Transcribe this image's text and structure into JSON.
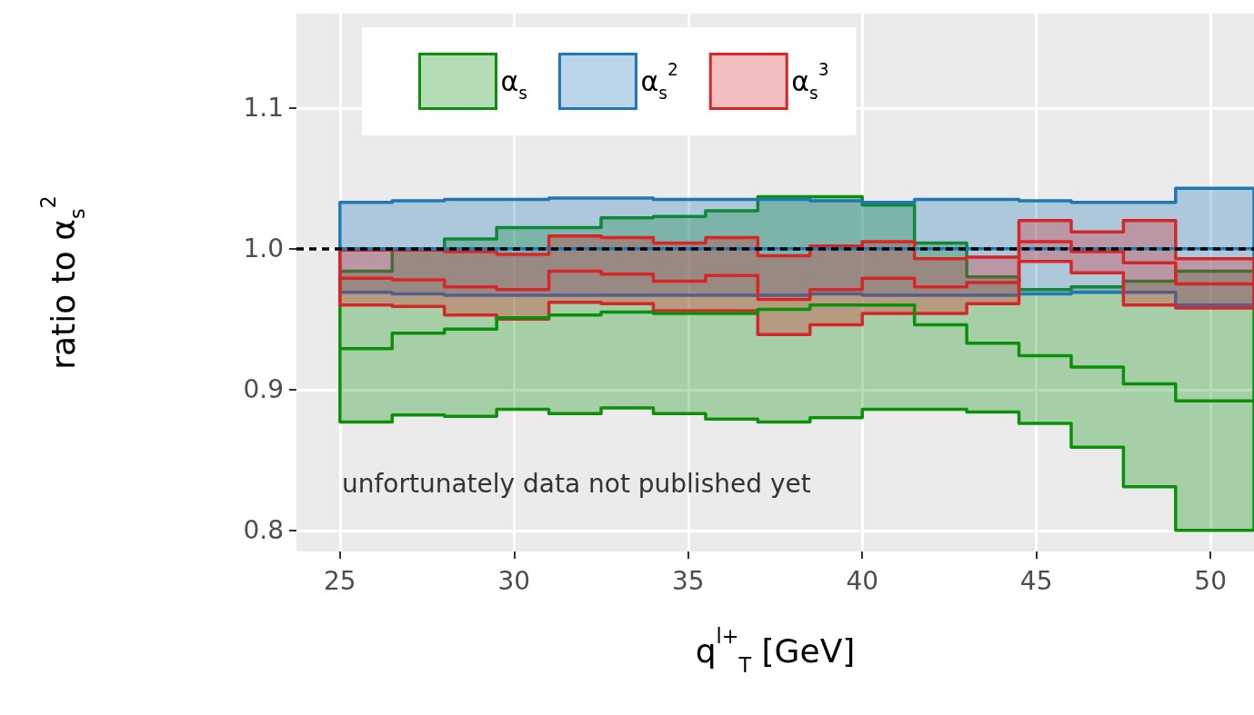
{
  "chart_data": {
    "type": "step",
    "xlabel": "q$^{l+}$$_{T}$ [GeV]",
    "ylabel": "ratio to α$_{s}$$^{2}$",
    "x": [
      25,
      26.5,
      28,
      29.5,
      31,
      32.5,
      34,
      35.5,
      37,
      38.5,
      40,
      41.5,
      43,
      44.5,
      46,
      47.5,
      49,
      51.25
    ],
    "xlim": [
      23.75,
      51.25
    ],
    "xticks": [
      25,
      30,
      35,
      40,
      45,
      50
    ],
    "ylim": [
      0.785,
      1.167
    ],
    "yticks": [
      0.8,
      0.9,
      {
        "value": 1,
        "label": "1.0"
      },
      1.1
    ],
    "grid": true,
    "legend": "top left",
    "marker": "none",
    "line_style": "solid",
    "series": [
      {
        "name": "α$_{s}$",
        "color": "#0a900a",
        "values": [
          0.929,
          0.94,
          0.943,
          0.951,
          0.953,
          0.955,
          0.954,
          0.954,
          0.957,
          0.96,
          0.96,
          0.946,
          0.933,
          0.924,
          0.916,
          0.904,
          0.892,
          0.892
        ],
        "lower": [
          0.877,
          0.882,
          0.881,
          0.886,
          0.883,
          0.887,
          0.883,
          0.879,
          0.877,
          0.88,
          0.886,
          0.886,
          0.884,
          0.876,
          0.859,
          0.831,
          0.8,
          0.8
        ],
        "upper": [
          0.984,
          0.999,
          1.007,
          1.015,
          1.015,
          1.022,
          1.023,
          1.027,
          1.037,
          1.037,
          1.031,
          1.004,
          0.98,
          0.971,
          0.973,
          0.977,
          0.984,
          0.984
        ]
      },
      {
        "name": "α$_{s}$$^{2}$",
        "color": "#1f77b4",
        "values": [
          1,
          1,
          1,
          1,
          1,
          1,
          1,
          1,
          1,
          1,
          1,
          1,
          1,
          1,
          1,
          1,
          1,
          1
        ],
        "lower": [
          0.969,
          0.968,
          0.967,
          0.967,
          0.967,
          0.967,
          0.967,
          0.967,
          0.967,
          0.968,
          0.967,
          0.967,
          0.967,
          0.968,
          0.969,
          0.969,
          0.96,
          0.96
        ],
        "upper": [
          1.033,
          1.034,
          1.035,
          1.035,
          1.036,
          1.036,
          1.035,
          1.035,
          1.035,
          1.034,
          1.033,
          1.035,
          1.035,
          1.034,
          1.033,
          1.033,
          1.043,
          1.043
        ]
      },
      {
        "name": "α$_{s}$$^{3}$",
        "color": "#d62728",
        "values": [
          0.979,
          0.978,
          0.973,
          0.971,
          0.984,
          0.982,
          0.977,
          0.981,
          0.964,
          0.971,
          0.979,
          0.973,
          0.976,
          1.005,
          0.998,
          0.99,
          0.975,
          0.975
        ],
        "lower": [
          0.96,
          0.959,
          0.953,
          0.95,
          0.962,
          0.961,
          0.956,
          0.956,
          0.939,
          0.946,
          0.954,
          0.954,
          0.961,
          0.991,
          0.983,
          0.96,
          0.958,
          0.958
        ],
        "upper": [
          0.999,
          0.999,
          0.998,
          0.996,
          1.009,
          1.008,
          1.004,
          1.008,
          0.995,
          1.002,
          1.005,
          0.993,
          0.994,
          1.02,
          1.012,
          1.02,
          0.993,
          0.993
        ]
      }
    ],
    "ref_lines": [
      {
        "axis": "y",
        "value": 1,
        "color": "#000000",
        "line_style": "dashed"
      }
    ],
    "annotations": [
      "unfortunately data not published yet"
    ]
  }
}
